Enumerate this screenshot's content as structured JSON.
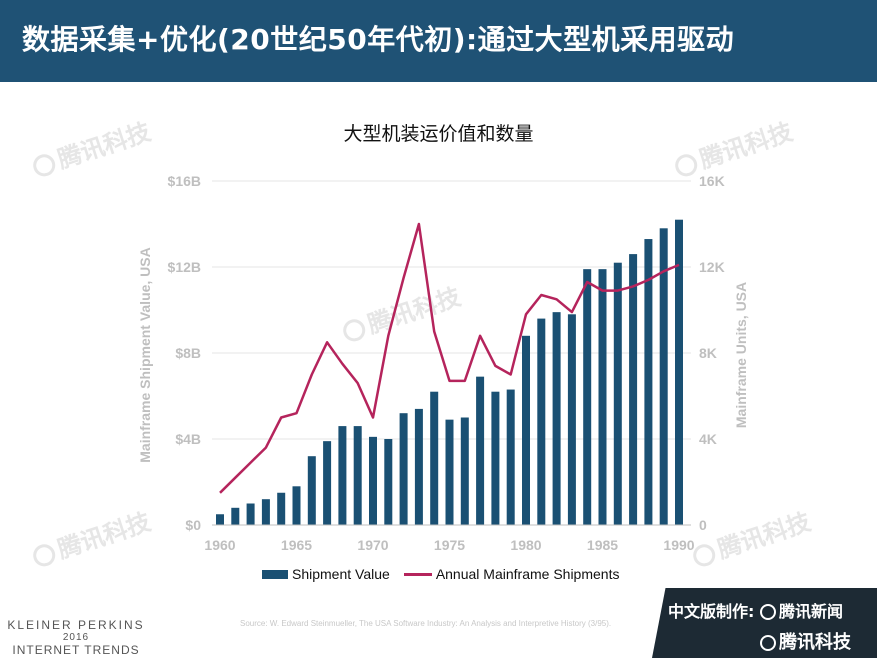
{
  "header": {
    "title": "数据采集+优化(20世纪50年代初):通过大型机采用驱动"
  },
  "chart_data": {
    "type": "bar",
    "title": "大型机装运价值和数量",
    "years": [
      1960,
      1961,
      1962,
      1963,
      1964,
      1965,
      1966,
      1967,
      1968,
      1969,
      1970,
      1971,
      1972,
      1973,
      1974,
      1975,
      1976,
      1977,
      1978,
      1979,
      1980,
      1981,
      1982,
      1983,
      1984,
      1985,
      1986,
      1987,
      1988,
      1989,
      1990
    ],
    "series": [
      {
        "name": "Shipment Value",
        "axis": "left",
        "type": "bar",
        "values": [
          0.5,
          0.8,
          1.0,
          1.2,
          1.5,
          1.8,
          3.2,
          3.9,
          4.6,
          4.6,
          4.1,
          4.0,
          5.2,
          5.4,
          6.2,
          4.9,
          5.0,
          6.9,
          6.2,
          6.3,
          8.8,
          9.6,
          9.9,
          9.8,
          11.9,
          11.9,
          12.2,
          12.6,
          13.3,
          13.8,
          14.2
        ]
      },
      {
        "name": "Annual Mainframe Shipments",
        "axis": "right",
        "type": "line",
        "values": [
          1.5,
          2.2,
          2.9,
          3.6,
          5.0,
          5.2,
          7.0,
          8.5,
          7.5,
          6.6,
          5.0,
          8.8,
          11.5,
          14.0,
          9.0,
          6.7,
          6.7,
          8.8,
          7.4,
          7.0,
          9.8,
          10.7,
          10.5,
          9.9,
          11.3,
          10.9,
          10.9,
          11.1,
          11.4,
          11.8,
          12.1
        ]
      }
    ],
    "y_left": {
      "label": "Mainframe Shipment Value, USA",
      "range": [
        0,
        16
      ],
      "ticks": [
        "$0",
        "$4B",
        "$8B",
        "$12B",
        "$16B"
      ]
    },
    "y_right": {
      "label": "Mainframe Units, USA",
      "range": [
        0,
        16000
      ],
      "ticks": [
        "0",
        "4K",
        "8K",
        "12K",
        "16K"
      ]
    },
    "x_ticks": [
      "1960",
      "1965",
      "1970",
      "1975",
      "1980",
      "1985",
      "1990"
    ],
    "grid": true,
    "legend_position": "bottom",
    "colors": {
      "bar": "#1a5073",
      "line": "#b5245c"
    }
  },
  "footer": {
    "source": "Source: W. Edward Steinmueller, The USA Software Industry: An Analysis and Interpretive History (3/95).",
    "brand_line1": "KLEINER PERKINS",
    "brand_line2": "2016",
    "brand_line3": "INTERNET TRENDS",
    "producer_label": "中文版制作:",
    "producer1": "腾讯新闻",
    "producer2": "腾讯科技"
  },
  "watermark": {
    "text": "腾讯科技"
  }
}
